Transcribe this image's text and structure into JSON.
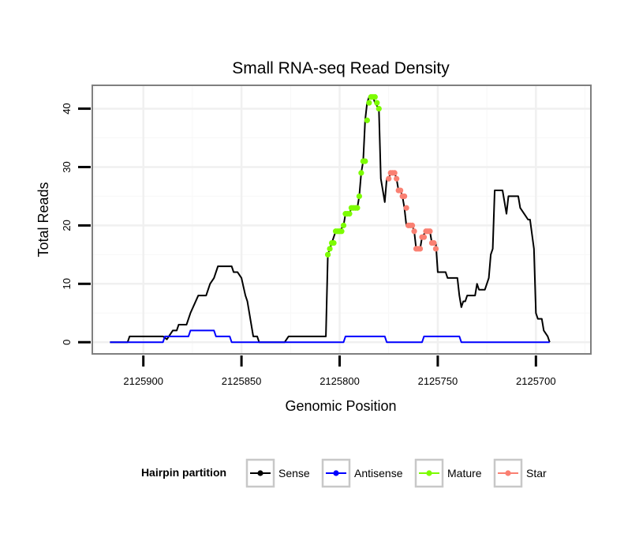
{
  "chart_data": {
    "type": "line",
    "title": "Small RNA-seq Read Density",
    "xlabel": "Genomic Position",
    "ylabel": "Total Reads",
    "xlim": [
      2125926,
      2125672
    ],
    "x_reversed": true,
    "ylim": [
      -2,
      44
    ],
    "x_ticks": [
      2125900,
      2125850,
      2125800,
      2125750,
      2125700
    ],
    "y_ticks": [
      0,
      10,
      20,
      30,
      40
    ],
    "grid": true,
    "legend": {
      "title": "Hairpin partition",
      "placement": "bottom",
      "entries": [
        "Sense",
        "Antisense",
        "Mature",
        "Star"
      ]
    },
    "colors": {
      "Sense": "#000000",
      "Antisense": "#0000ff",
      "Mature": "#7cfc00",
      "Star": "#fa8072"
    },
    "series": [
      {
        "name": "Sense",
        "style": "line",
        "points": [
          [
            2125917,
            0
          ],
          [
            2125908,
            0
          ],
          [
            2125907,
            1
          ],
          [
            2125890,
            1
          ],
          [
            2125888,
            0.5
          ],
          [
            2125887,
            1
          ],
          [
            2125885,
            2
          ],
          [
            2125883,
            2
          ],
          [
            2125882,
            3
          ],
          [
            2125878,
            3
          ],
          [
            2125876,
            5
          ],
          [
            2125872,
            8
          ],
          [
            2125868,
            8
          ],
          [
            2125866,
            10
          ],
          [
            2125864,
            11
          ],
          [
            2125862,
            13
          ],
          [
            2125855,
            13
          ],
          [
            2125854,
            12
          ],
          [
            2125852,
            12
          ],
          [
            2125850,
            11
          ],
          [
            2125848,
            8
          ],
          [
            2125847,
            7
          ],
          [
            2125846,
            5
          ],
          [
            2125845,
            3
          ],
          [
            2125844,
            1
          ],
          [
            2125842,
            1
          ],
          [
            2125841,
            0
          ],
          [
            2125828,
            0
          ],
          [
            2125826,
            1
          ],
          [
            2125807,
            1
          ],
          [
            2125806,
            15
          ],
          [
            2125805,
            16
          ],
          [
            2125804,
            17
          ],
          [
            2125802,
            19
          ],
          [
            2125800,
            19
          ],
          [
            2125798,
            20
          ],
          [
            2125797,
            22
          ],
          [
            2125795,
            22
          ],
          [
            2125794,
            23
          ],
          [
            2125791,
            23
          ],
          [
            2125790,
            25
          ],
          [
            2125789,
            29
          ],
          [
            2125788,
            31
          ],
          [
            2125787,
            38
          ],
          [
            2125786,
            41
          ],
          [
            2125785,
            42
          ],
          [
            2125783,
            42
          ],
          [
            2125782,
            41
          ],
          [
            2125780,
            40
          ],
          [
            2125779,
            28
          ],
          [
            2125777,
            24
          ],
          [
            2125776,
            28
          ],
          [
            2125775,
            28
          ],
          [
            2125774,
            29
          ],
          [
            2125772,
            29
          ],
          [
            2125771,
            28
          ],
          [
            2125770,
            26
          ],
          [
            2125769,
            26
          ],
          [
            2125768,
            25
          ],
          [
            2125767,
            23
          ],
          [
            2125766,
            20
          ],
          [
            2125763,
            20
          ],
          [
            2125762,
            19
          ],
          [
            2125761,
            16
          ],
          [
            2125759,
            16
          ],
          [
            2125758,
            18
          ],
          [
            2125756,
            19
          ],
          [
            2125754,
            19
          ],
          [
            2125753,
            17
          ],
          [
            2125751,
            17
          ],
          [
            2125750,
            12
          ],
          [
            2125746,
            12
          ],
          [
            2125745,
            11
          ],
          [
            2125740,
            11
          ],
          [
            2125739,
            8
          ],
          [
            2125738,
            6
          ],
          [
            2125737,
            7
          ],
          [
            2125736,
            7
          ],
          [
            2125735,
            8
          ],
          [
            2125731,
            8
          ],
          [
            2125730,
            10
          ],
          [
            2125729,
            9
          ],
          [
            2125726,
            9
          ],
          [
            2125724,
            11
          ],
          [
            2125723,
            15
          ],
          [
            2125722,
            16
          ],
          [
            2125721,
            26
          ],
          [
            2125717,
            26
          ],
          [
            2125716,
            24
          ],
          [
            2125715,
            22
          ],
          [
            2125714,
            25
          ],
          [
            2125709,
            25
          ],
          [
            2125708,
            23
          ],
          [
            2125706,
            22
          ],
          [
            2125704,
            21
          ],
          [
            2125703,
            21
          ],
          [
            2125701,
            16
          ],
          [
            2125700,
            5
          ],
          [
            2125699,
            4
          ],
          [
            2125697,
            4
          ],
          [
            2125696,
            2
          ],
          [
            2125694,
            1
          ],
          [
            2125693,
            0
          ]
        ]
      },
      {
        "name": "Antisense",
        "style": "line",
        "points": [
          [
            2125917,
            0
          ],
          [
            2125890,
            0
          ],
          [
            2125889,
            1
          ],
          [
            2125877,
            1
          ],
          [
            2125876,
            2
          ],
          [
            2125864,
            2
          ],
          [
            2125863,
            1
          ],
          [
            2125856,
            1
          ],
          [
            2125855,
            0
          ],
          [
            2125798,
            0
          ],
          [
            2125797,
            1
          ],
          [
            2125777,
            1
          ],
          [
            2125776,
            0
          ],
          [
            2125758,
            0
          ],
          [
            2125757,
            1
          ],
          [
            2125739,
            1
          ],
          [
            2125738,
            0
          ],
          [
            2125693,
            0
          ]
        ]
      },
      {
        "name": "Mature",
        "style": "points",
        "points": [
          [
            2125806,
            15
          ],
          [
            2125805,
            16
          ],
          [
            2125804,
            17
          ],
          [
            2125803,
            17
          ],
          [
            2125802,
            19
          ],
          [
            2125801,
            19
          ],
          [
            2125800,
            19
          ],
          [
            2125799,
            19
          ],
          [
            2125798,
            20
          ],
          [
            2125797,
            22
          ],
          [
            2125796,
            22
          ],
          [
            2125795,
            22
          ],
          [
            2125794,
            23
          ],
          [
            2125793,
            23
          ],
          [
            2125792,
            23
          ],
          [
            2125791,
            23
          ],
          [
            2125790,
            25
          ],
          [
            2125789,
            29
          ],
          [
            2125788,
            31
          ],
          [
            2125787,
            31
          ],
          [
            2125786,
            38
          ],
          [
            2125785,
            41
          ],
          [
            2125784,
            42
          ],
          [
            2125783,
            42
          ],
          [
            2125782,
            42
          ],
          [
            2125781,
            41
          ],
          [
            2125780,
            40
          ]
        ]
      },
      {
        "name": "Star",
        "style": "points",
        "points": [
          [
            2125775,
            28
          ],
          [
            2125774,
            29
          ],
          [
            2125773,
            29
          ],
          [
            2125772,
            29
          ],
          [
            2125771,
            28
          ],
          [
            2125770,
            26
          ],
          [
            2125769,
            26
          ],
          [
            2125768,
            25
          ],
          [
            2125767,
            25
          ],
          [
            2125766,
            23
          ],
          [
            2125765,
            20
          ],
          [
            2125764,
            20
          ],
          [
            2125763,
            20
          ],
          [
            2125762,
            19
          ],
          [
            2125761,
            16
          ],
          [
            2125760,
            16
          ],
          [
            2125759,
            16
          ],
          [
            2125758,
            18
          ],
          [
            2125757,
            18
          ],
          [
            2125756,
            19
          ],
          [
            2125755,
            19
          ],
          [
            2125754,
            19
          ],
          [
            2125753,
            17
          ],
          [
            2125752,
            17
          ],
          [
            2125751,
            16
          ]
        ]
      }
    ]
  }
}
